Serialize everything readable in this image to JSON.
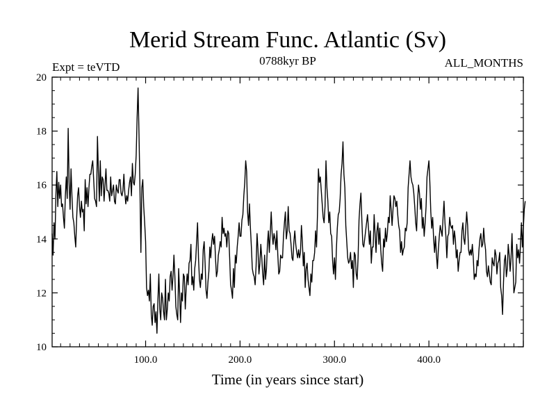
{
  "chart_data": {
    "type": "line",
    "title": "Merid Stream Func. Atlantic (Sv)",
    "subtitle_left": "Expt = teVTD",
    "subtitle_center": "0788kyr BP",
    "subtitle_right": "ALL_MONTHS",
    "xlabel": "Time (in years since start)",
    "ylabel": "",
    "xlim": [
      1,
      500
    ],
    "ylim": [
      10,
      20
    ],
    "x_ticks": [
      100,
      200,
      300,
      400
    ],
    "x_tick_labels": [
      "100.0",
      "200.0",
      "300.0",
      "400.0"
    ],
    "y_ticks": [
      10,
      12,
      14,
      16,
      18,
      20
    ],
    "y_tick_labels": [
      "10",
      "12",
      "14",
      "16",
      "18",
      "20"
    ],
    "grid": false,
    "line_color": "#000000",
    "series": [
      {
        "x_start": 1,
        "x_step": 1,
        "values": [
          14.2,
          13.4,
          14.6,
          14.0,
          15.6,
          16.5,
          15.2,
          16.1,
          15.5,
          16.0,
          15.2,
          15.3,
          14.8,
          14.4,
          15.6,
          16.3,
          15.5,
          18.1,
          16.1,
          15.1,
          16.6,
          15.6,
          14.8,
          14.6,
          14.1,
          13.7,
          14.8,
          15.6,
          15.9,
          15.2,
          14.8,
          15.4,
          15.0,
          15.1,
          14.3,
          16.2,
          15.3,
          15.9,
          15.2,
          15.9,
          16.4,
          16.4,
          16.7,
          16.9,
          16.2,
          15.5,
          15.4,
          15.2,
          17.8,
          16.5,
          15.4,
          16.9,
          15.6,
          16.3,
          16.2,
          15.4,
          16.0,
          16.6,
          15.8,
          15.8,
          15.7,
          15.4,
          16.3,
          15.6,
          15.8,
          16.0,
          15.4,
          15.3,
          16.0,
          15.8,
          15.7,
          16.2,
          16.2,
          15.7,
          15.6,
          15.8,
          16.4,
          15.7,
          15.3,
          15.6,
          15.4,
          15.8,
          16.1,
          16.3,
          15.6,
          16.8,
          16.1,
          16.0,
          16.4,
          17.1,
          18.5,
          19.6,
          17.9,
          15.9,
          13.5,
          15.9,
          16.2,
          15.2,
          14.6,
          13.9,
          12.2,
          11.9,
          12.1,
          11.7,
          12.7,
          11.2,
          10.8,
          11.5,
          11.6,
          10.9,
          11.3,
          10.5,
          11.7,
          12.7,
          11.4,
          11.0,
          12.0,
          11.8,
          11.3,
          11.0,
          12.5,
          11.0,
          11.4,
          12.0,
          11.7,
          12.6,
          12.8,
          12.1,
          12.6,
          13.4,
          12.6,
          11.5,
          11.2,
          11.0,
          12.9,
          12.0,
          10.9,
          12.0,
          11.7,
          12.7,
          12.6,
          11.4,
          12.2,
          12.7,
          12.3,
          13.1,
          13.2,
          13.8,
          12.3,
          12.6,
          12.1,
          12.9,
          13.2,
          13.9,
          14.6,
          13.3,
          12.5,
          12.2,
          12.7,
          12.5,
          13.6,
          13.9,
          13.1,
          12.1,
          11.8,
          12.4,
          12.8,
          13.7,
          13.3,
          13.9,
          14.2,
          13.8,
          14.1,
          13.3,
          12.6,
          12.8,
          13.4,
          13.6,
          13.9,
          13.7,
          14.8,
          14.2,
          14.4,
          14.1,
          14.2,
          13.7,
          14.3,
          14.2,
          13.3,
          12.3,
          12.1,
          11.8,
          12.9,
          12.2,
          13.4,
          13.1,
          13.7,
          14.1,
          14.6,
          14.1,
          14.1,
          14.7,
          14.9,
          15.6,
          16.1,
          16.9,
          16.5,
          15.0,
          14.5,
          15.3,
          14.4,
          13.7,
          12.9,
          12.7,
          12.6,
          12.3,
          13.0,
          14.2,
          13.6,
          12.7,
          13.1,
          13.8,
          13.3,
          12.7,
          12.3,
          13.4,
          12.5,
          12.9,
          13.8,
          14.3,
          13.5,
          14.2,
          15.0,
          14.2,
          13.8,
          14.2,
          14.0,
          13.6,
          14.3,
          13.4,
          12.7,
          12.8,
          13.4,
          13.3,
          13.3,
          14.1,
          14.6,
          15.0,
          14.0,
          14.3,
          15.2,
          14.3,
          14.2,
          13.8,
          13.3,
          13.2,
          13.9,
          14.3,
          13.8,
          13.5,
          13.3,
          13.6,
          13.3,
          13.5,
          14.5,
          13.9,
          13.0,
          13.5,
          12.2,
          12.9,
          13.1,
          12.5,
          12.2,
          11.9,
          12.7,
          12.4,
          13.2,
          13.2,
          13.5,
          14.3,
          13.7,
          14.9,
          16.6,
          16.1,
          16.3,
          15.8,
          15.3,
          14.8,
          14.6,
          15.2,
          16.9,
          15.9,
          15.4,
          14.6,
          15.0,
          14.2,
          14.1,
          13.2,
          12.7,
          13.3,
          12.5,
          13.6,
          14.4,
          14.9,
          15.0,
          15.5,
          16.4,
          16.8,
          17.6,
          16.4,
          15.9,
          14.5,
          13.9,
          13.3,
          13.1,
          13.2,
          13.5,
          12.9,
          13.2,
          12.2,
          13.5,
          13.4,
          12.7,
          12.5,
          13.3,
          14.7,
          15.3,
          15.7,
          14.7,
          13.8,
          13.7,
          14.0,
          14.3,
          14.6,
          14.9,
          14.4,
          13.8,
          14.3,
          13.1,
          13.7,
          13.7,
          14.9,
          14.2,
          13.5,
          14.3,
          14.6,
          13.8,
          14.4,
          13.6,
          13.1,
          12.8,
          14.0,
          13.7,
          14.4,
          13.9,
          14.2,
          14.8,
          14.6,
          15.6,
          15.1,
          14.5,
          15.1,
          15.6,
          15.5,
          15.2,
          15.4,
          14.9,
          14.5,
          14.3,
          13.5,
          13.9,
          13.4,
          13.6,
          13.7,
          14.4,
          14.3,
          14.6,
          15.9,
          16.4,
          16.9,
          16.3,
          16.1,
          16.0,
          15.7,
          15.2,
          14.6,
          14.3,
          15.4,
          16.0,
          15.7,
          15.1,
          15.5,
          14.4,
          14.8,
          14.1,
          14.6,
          15.2,
          16.3,
          16.6,
          16.9,
          16.1,
          15.0,
          14.4,
          14.8,
          14.0,
          13.5,
          14.1,
          13.4,
          12.9,
          13.6,
          14.1,
          14.5,
          14.3,
          14.1,
          14.8,
          15.4,
          14.6,
          14.1,
          13.3,
          14.1,
          14.2,
          14.8,
          14.5,
          14.4,
          14.5,
          13.8,
          14.3,
          14.0,
          13.3,
          13.6,
          12.8,
          13.2,
          13.5,
          13.5,
          14.3,
          14.6,
          14.0,
          13.8,
          14.4,
          15.0,
          14.5,
          13.6,
          13.4,
          13.6,
          13.4,
          13.8,
          13.3,
          12.5,
          12.7,
          12.6,
          13.2,
          13.0,
          13.6,
          14.0,
          14.2,
          13.7,
          13.8,
          14.4,
          13.9,
          13.6,
          12.8,
          12.6,
          13.0,
          12.7,
          12.4,
          12.3,
          13.3,
          13.1,
          13.0,
          13.6,
          13.4,
          12.7,
          13.1,
          13.2,
          13.5,
          12.2,
          11.9,
          11.2,
          12.4,
          13.2,
          13.4,
          12.6,
          12.9,
          13.8,
          13.4,
          12.8,
          13.3,
          14.2,
          13.1,
          12.0,
          12.2,
          12.4,
          13.8,
          13.3,
          13.6,
          13.1,
          13.8,
          14.6,
          13.7,
          14.4,
          15.1,
          15.4
        ]
      }
    ]
  }
}
